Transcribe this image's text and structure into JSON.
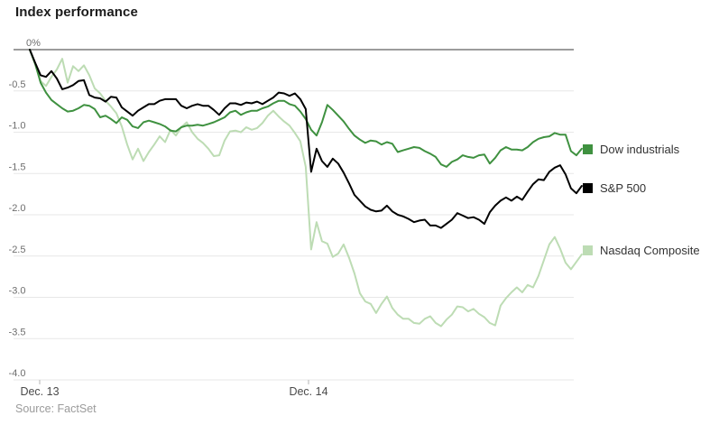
{
  "page": {
    "title": "Index performance",
    "source": "Source: FactSet"
  },
  "colors": {
    "dow_green": "#3f9140",
    "sp500_black": "#000000",
    "nasdaq_light_green": "#bddcb4",
    "grid": "#e7e7e7",
    "zero_line": "#9c9c9c",
    "y_axis_text": "#6e6e6e",
    "x_axis_text": "#4a4a4a",
    "legend_text": "#333333",
    "axis_tick": "#b5b5b5",
    "background": "#ffffff"
  },
  "chart_data": {
    "type": "line",
    "title": "Index performance",
    "unit": "percent change from previous close",
    "ylim": [
      -4.0,
      0
    ],
    "ylabel": "",
    "xlabel": "",
    "grid": true,
    "legend_position": "right",
    "y_tick_labels": [
      "0%",
      "-0.5",
      "-1.0",
      "-1.5",
      "-2.0",
      "-2.5",
      "-3.0",
      "-3.5",
      "-4.0"
    ],
    "y_tick_values": [
      0,
      -0.5,
      -1.0,
      -1.5,
      -2.0,
      -2.5,
      -3.0,
      -3.5,
      -4.0
    ],
    "x_tick_labels": [
      "Dec. 13",
      "Dec. 14"
    ],
    "x_tick_values": [
      0,
      1
    ],
    "x_unit": "trading day index (0 = Dec. 13 open, 1 = Dec. 14 open, 2 = Dec. 14 close)",
    "x_start": -0.0369,
    "x_step": 0.02013,
    "series": [
      {
        "name": "Dow industrials",
        "color": "#3f9140",
        "values": [
          0,
          -0.17,
          -0.4,
          -0.52,
          -0.61,
          -0.66,
          -0.71,
          -0.75,
          -0.74,
          -0.71,
          -0.67,
          -0.68,
          -0.72,
          -0.82,
          -0.8,
          -0.84,
          -0.89,
          -0.82,
          -0.85,
          -0.93,
          -0.95,
          -0.88,
          -0.86,
          -0.88,
          -0.9,
          -0.93,
          -0.98,
          -0.99,
          -0.94,
          -0.92,
          -0.92,
          -0.91,
          -0.92,
          -0.9,
          -0.88,
          -0.85,
          -0.82,
          -0.76,
          -0.74,
          -0.79,
          -0.76,
          -0.74,
          -0.74,
          -0.71,
          -0.69,
          -0.65,
          -0.62,
          -0.62,
          -0.66,
          -0.68,
          -0.75,
          -0.84,
          -0.97,
          -1.04,
          -0.88,
          -0.67,
          -0.73,
          -0.8,
          -0.87,
          -0.96,
          -1.04,
          -1.09,
          -1.13,
          -1.1,
          -1.11,
          -1.15,
          -1.12,
          -1.14,
          -1.24,
          -1.22,
          -1.2,
          -1.18,
          -1.19,
          -1.23,
          -1.26,
          -1.3,
          -1.39,
          -1.42,
          -1.36,
          -1.33,
          -1.28,
          -1.3,
          -1.31,
          -1.28,
          -1.27,
          -1.38,
          -1.31,
          -1.22,
          -1.18,
          -1.21,
          -1.21,
          -1.22,
          -1.18,
          -1.12,
          -1.08,
          -1.06,
          -1.05,
          -1.01,
          -1.03,
          -1.03,
          -1.23,
          -1.28,
          -1.2
        ]
      },
      {
        "name": "S&P 500",
        "color": "#000000",
        "values": [
          0,
          -0.16,
          -0.31,
          -0.33,
          -0.26,
          -0.35,
          -0.48,
          -0.46,
          -0.43,
          -0.38,
          -0.37,
          -0.55,
          -0.58,
          -0.59,
          -0.63,
          -0.57,
          -0.58,
          -0.7,
          -0.75,
          -0.8,
          -0.74,
          -0.7,
          -0.66,
          -0.66,
          -0.62,
          -0.6,
          -0.6,
          -0.6,
          -0.68,
          -0.71,
          -0.68,
          -0.66,
          -0.68,
          -0.68,
          -0.73,
          -0.79,
          -0.71,
          -0.65,
          -0.65,
          -0.67,
          -0.64,
          -0.65,
          -0.63,
          -0.66,
          -0.62,
          -0.58,
          -0.52,
          -0.53,
          -0.56,
          -0.53,
          -0.6,
          -0.72,
          -1.48,
          -1.2,
          -1.35,
          -1.42,
          -1.32,
          -1.38,
          -1.49,
          -1.62,
          -1.76,
          -1.83,
          -1.9,
          -1.94,
          -1.96,
          -1.95,
          -1.89,
          -1.96,
          -2,
          -2.02,
          -2.05,
          -2.09,
          -2.07,
          -2.06,
          -2.13,
          -2.13,
          -2.16,
          -2.11,
          -2.06,
          -1.98,
          -2.01,
          -2.04,
          -2.03,
          -2.06,
          -2.11,
          -1.97,
          -1.89,
          -1.83,
          -1.79,
          -1.83,
          -1.78,
          -1.82,
          -1.72,
          -1.63,
          -1.57,
          -1.58,
          -1.48,
          -1.43,
          -1.4,
          -1.51,
          -1.68,
          -1.74,
          -1.65
        ]
      },
      {
        "name": "Nasdaq Composite",
        "color": "#bddcb4",
        "values": [
          0,
          -0.18,
          -0.38,
          -0.44,
          -0.33,
          -0.24,
          -0.11,
          -0.4,
          -0.2,
          -0.26,
          -0.19,
          -0.31,
          -0.47,
          -0.53,
          -0.62,
          -0.69,
          -0.77,
          -0.93,
          -1.15,
          -1.33,
          -1.2,
          -1.35,
          -1.24,
          -1.15,
          -1.05,
          -1.12,
          -0.97,
          -1.04,
          -0.94,
          -0.88,
          -1,
          -1.08,
          -1.13,
          -1.2,
          -1.29,
          -1.28,
          -1.1,
          -0.99,
          -0.98,
          -1,
          -0.94,
          -0.97,
          -0.95,
          -0.89,
          -0.8,
          -0.74,
          -0.81,
          -0.87,
          -0.92,
          -1.01,
          -1.11,
          -1.42,
          -2.42,
          -2.09,
          -2.32,
          -2.35,
          -2.51,
          -2.47,
          -2.36,
          -2.52,
          -2.71,
          -2.95,
          -3.05,
          -3.08,
          -3.19,
          -3.08,
          -2.99,
          -3.13,
          -3.21,
          -3.26,
          -3.26,
          -3.31,
          -3.32,
          -3.26,
          -3.23,
          -3.31,
          -3.35,
          -3.27,
          -3.21,
          -3.11,
          -3.12,
          -3.17,
          -3.14,
          -3.2,
          -3.24,
          -3.31,
          -3.34,
          -3.1,
          -3.01,
          -2.94,
          -2.88,
          -2.94,
          -2.85,
          -2.88,
          -2.74,
          -2.55,
          -2.36,
          -2.27,
          -2.41,
          -2.58,
          -2.66,
          -2.57,
          -2.48
        ]
      }
    ]
  }
}
